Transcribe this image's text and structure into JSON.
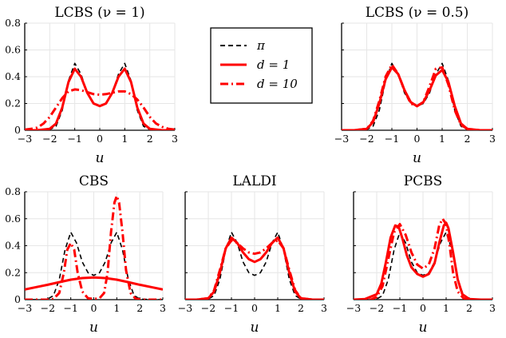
{
  "figure": {
    "background": "#ffffff"
  },
  "chart_data": [
    {
      "id": "lcbs1",
      "type": "line",
      "title": "LCBS (ν = 1)",
      "xlabel": "u",
      "ylabel": "",
      "xlim": [
        -3,
        3
      ],
      "ylim": [
        0,
        0.8
      ],
      "xticks": [
        -3,
        -2,
        -1,
        0,
        1,
        2,
        3
      ],
      "yticks": [
        0,
        0.2,
        0.4,
        0.6,
        0.8
      ],
      "xtick_labels": [
        "−3",
        "−2",
        "−1",
        "0",
        "1",
        "2",
        "3"
      ],
      "ytick_labels": [
        "0",
        "0.2",
        "0.4",
        "0.6",
        "0.8"
      ],
      "show_yticklabels": true,
      "grid": true,
      "series": [
        {
          "name": "π",
          "style": "dashed",
          "color": "#000000",
          "x": [
            -3,
            -2.5,
            -2,
            -1.75,
            -1.5,
            -1.25,
            -1,
            -0.75,
            -0.5,
            -0.25,
            0,
            0.25,
            0.5,
            0.75,
            1,
            1.25,
            1.5,
            1.75,
            2,
            2.5,
            3
          ],
          "y": [
            0,
            0,
            0.005,
            0.03,
            0.15,
            0.37,
            0.5,
            0.42,
            0.28,
            0.2,
            0.18,
            0.2,
            0.28,
            0.42,
            0.5,
            0.37,
            0.15,
            0.03,
            0.005,
            0,
            0
          ]
        },
        {
          "name": "d = 1",
          "style": "solid",
          "color": "#ff0000",
          "x": [
            -3,
            -2.5,
            -2,
            -1.75,
            -1.5,
            -1.25,
            -1,
            -0.75,
            -0.5,
            -0.25,
            0,
            0.25,
            0.5,
            0.75,
            1,
            1.25,
            1.5,
            1.75,
            2,
            2.5,
            3
          ],
          "y": [
            0,
            0,
            0.01,
            0.05,
            0.17,
            0.36,
            0.46,
            0.4,
            0.28,
            0.2,
            0.18,
            0.2,
            0.28,
            0.4,
            0.46,
            0.36,
            0.17,
            0.05,
            0.01,
            0,
            0
          ]
        },
        {
          "name": "d = 10",
          "style": "dashdot",
          "color": "#ff0000",
          "x": [
            -3,
            -2.75,
            -2.5,
            -2.25,
            -2,
            -1.75,
            -1.5,
            -1.25,
            -1,
            -0.75,
            -0.5,
            -0.25,
            0,
            0.25,
            0.5,
            0.75,
            1,
            1.25,
            1.5,
            1.75,
            2,
            2.25,
            2.5,
            2.75,
            3
          ],
          "y": [
            0.005,
            0.01,
            0.02,
            0.05,
            0.1,
            0.17,
            0.24,
            0.29,
            0.305,
            0.3,
            0.285,
            0.27,
            0.265,
            0.27,
            0.28,
            0.29,
            0.29,
            0.27,
            0.23,
            0.17,
            0.1,
            0.05,
            0.025,
            0.01,
            0.005
          ]
        }
      ]
    },
    {
      "id": "lcbs05",
      "type": "line",
      "title": "LCBS (ν = 0.5)",
      "xlabel": "u",
      "ylabel": "",
      "xlim": [
        -3,
        3
      ],
      "ylim": [
        0,
        0.8
      ],
      "xticks": [
        -3,
        -2,
        -1,
        0,
        1,
        2,
        3
      ],
      "yticks": [
        0,
        0.2,
        0.4,
        0.6,
        0.8
      ],
      "xtick_labels": [
        "−3",
        "−2",
        "−1",
        "0",
        "1",
        "2",
        "3"
      ],
      "ytick_labels": [
        "0",
        "0.2",
        "0.4",
        "0.6",
        "0.8"
      ],
      "show_yticklabels": false,
      "grid": true,
      "series": [
        {
          "name": "π",
          "style": "dashed",
          "color": "#000000",
          "x": [
            -3,
            -2.5,
            -2,
            -1.75,
            -1.5,
            -1.25,
            -1,
            -0.75,
            -0.5,
            -0.25,
            0,
            0.25,
            0.5,
            0.75,
            1,
            1.25,
            1.5,
            1.75,
            2,
            2.5,
            3
          ],
          "y": [
            0,
            0,
            0.005,
            0.03,
            0.15,
            0.37,
            0.5,
            0.42,
            0.28,
            0.2,
            0.18,
            0.2,
            0.28,
            0.42,
            0.5,
            0.37,
            0.15,
            0.03,
            0.005,
            0,
            0
          ]
        },
        {
          "name": "d = 1",
          "style": "solid",
          "color": "#ff0000",
          "x": [
            -3,
            -2.5,
            -2,
            -1.75,
            -1.5,
            -1.25,
            -1,
            -0.75,
            -0.5,
            -0.25,
            0,
            0.25,
            0.5,
            0.75,
            1,
            1.25,
            1.5,
            1.75,
            2,
            2.5,
            3
          ],
          "y": [
            0,
            0,
            0.01,
            0.06,
            0.2,
            0.38,
            0.47,
            0.42,
            0.3,
            0.21,
            0.18,
            0.21,
            0.3,
            0.41,
            0.45,
            0.36,
            0.18,
            0.05,
            0.01,
            0,
            0
          ]
        },
        {
          "name": "d = 10",
          "style": "dashdot",
          "color": "#ff0000",
          "x": [
            -3,
            -2.5,
            -2,
            -1.75,
            -1.5,
            -1.25,
            -1,
            -0.75,
            -0.5,
            -0.25,
            0,
            0.25,
            0.5,
            0.75,
            1,
            1.25,
            1.5,
            1.75,
            2,
            2.5,
            3
          ],
          "y": [
            0,
            0,
            0.01,
            0.07,
            0.22,
            0.4,
            0.49,
            0.42,
            0.3,
            0.2,
            0.18,
            0.21,
            0.33,
            0.46,
            0.47,
            0.34,
            0.15,
            0.04,
            0.01,
            0,
            0
          ]
        }
      ]
    },
    {
      "id": "cbs",
      "type": "line",
      "title": "CBS",
      "xlabel": "u",
      "ylabel": "",
      "xlim": [
        -3,
        3
      ],
      "ylim": [
        0,
        0.8
      ],
      "xticks": [
        -3,
        -2,
        -1,
        0,
        1,
        2,
        3
      ],
      "yticks": [
        0,
        0.2,
        0.4,
        0.6,
        0.8
      ],
      "xtick_labels": [
        "−3",
        "−2",
        "−1",
        "0",
        "1",
        "2",
        "3"
      ],
      "ytick_labels": [
        "0",
        "0.2",
        "0.4",
        "0.6",
        "0.8"
      ],
      "show_yticklabels": true,
      "grid": true,
      "series": [
        {
          "name": "π",
          "style": "dashed",
          "color": "#000000",
          "x": [
            -3,
            -2.5,
            -2,
            -1.75,
            -1.5,
            -1.25,
            -1,
            -0.75,
            -0.5,
            -0.25,
            0,
            0.25,
            0.5,
            0.75,
            1,
            1.25,
            1.5,
            1.75,
            2,
            2.5,
            3
          ],
          "y": [
            0,
            0,
            0.005,
            0.03,
            0.15,
            0.37,
            0.5,
            0.42,
            0.28,
            0.2,
            0.18,
            0.2,
            0.28,
            0.42,
            0.5,
            0.37,
            0.15,
            0.03,
            0.005,
            0,
            0
          ]
        },
        {
          "name": "d = 1",
          "style": "solid",
          "color": "#ff0000",
          "x": [
            -3,
            -2.5,
            -2,
            -1.5,
            -1,
            -0.5,
            0,
            0.5,
            1,
            1.5,
            2,
            2.5,
            3
          ],
          "y": [
            0.075,
            0.093,
            0.11,
            0.13,
            0.148,
            0.16,
            0.165,
            0.16,
            0.148,
            0.13,
            0.11,
            0.093,
            0.075
          ]
        },
        {
          "name": "d = 10",
          "style": "dashdot",
          "color": "#ff0000",
          "x": [
            -3,
            -2,
            -1.75,
            -1.5,
            -1.3,
            -1.15,
            -1,
            -0.85,
            -0.7,
            -0.5,
            -0.25,
            0,
            0.25,
            0.45,
            0.6,
            0.75,
            0.9,
            1,
            1.1,
            1.25,
            1.4,
            1.6,
            1.8,
            2,
            3
          ],
          "y": [
            0,
            0,
            0.005,
            0.05,
            0.2,
            0.37,
            0.42,
            0.37,
            0.2,
            0.06,
            0.01,
            0.005,
            0.01,
            0.05,
            0.2,
            0.5,
            0.72,
            0.77,
            0.72,
            0.5,
            0.22,
            0.05,
            0.01,
            0,
            0
          ]
        }
      ]
    },
    {
      "id": "laldi",
      "type": "line",
      "title": "LALDI",
      "xlabel": "u",
      "ylabel": "",
      "xlim": [
        -3,
        3
      ],
      "ylim": [
        0,
        0.8
      ],
      "xticks": [
        -3,
        -2,
        -1,
        0,
        1,
        2,
        3
      ],
      "yticks": [
        0,
        0.2,
        0.4,
        0.6,
        0.8
      ],
      "xtick_labels": [
        "−3",
        "−2",
        "−1",
        "0",
        "1",
        "2",
        "3"
      ],
      "ytick_labels": [
        "0",
        "0.2",
        "0.4",
        "0.6",
        "0.8"
      ],
      "show_yticklabels": false,
      "grid": true,
      "series": [
        {
          "name": "π",
          "style": "dashed",
          "color": "#000000",
          "x": [
            -3,
            -2.5,
            -2,
            -1.75,
            -1.5,
            -1.25,
            -1,
            -0.75,
            -0.5,
            -0.25,
            0,
            0.25,
            0.5,
            0.75,
            1,
            1.25,
            1.5,
            1.75,
            2,
            2.5,
            3
          ],
          "y": [
            0,
            0,
            0.005,
            0.03,
            0.15,
            0.37,
            0.5,
            0.42,
            0.28,
            0.2,
            0.18,
            0.2,
            0.28,
            0.42,
            0.5,
            0.37,
            0.15,
            0.03,
            0.005,
            0,
            0
          ]
        },
        {
          "name": "d = 1",
          "style": "solid",
          "color": "#ff0000",
          "x": [
            -3,
            -2.5,
            -2,
            -1.75,
            -1.5,
            -1.25,
            -1,
            -0.75,
            -0.5,
            -0.25,
            0,
            0.25,
            0.5,
            0.75,
            1,
            1.25,
            1.5,
            1.75,
            2,
            2.5,
            3
          ],
          "y": [
            0,
            0,
            0.01,
            0.06,
            0.2,
            0.38,
            0.46,
            0.42,
            0.35,
            0.3,
            0.28,
            0.3,
            0.35,
            0.42,
            0.46,
            0.38,
            0.2,
            0.06,
            0.01,
            0,
            0
          ]
        },
        {
          "name": "d = 10",
          "style": "dashdot",
          "color": "#ff0000",
          "x": [
            -3,
            -2.5,
            -2,
            -1.75,
            -1.5,
            -1.25,
            -1,
            -0.75,
            -0.5,
            -0.25,
            0,
            0.25,
            0.5,
            0.75,
            1,
            1.25,
            1.5,
            1.75,
            2,
            2.5,
            3
          ],
          "y": [
            0,
            0,
            0.01,
            0.07,
            0.22,
            0.38,
            0.44,
            0.42,
            0.38,
            0.35,
            0.34,
            0.35,
            0.38,
            0.42,
            0.44,
            0.38,
            0.22,
            0.07,
            0.01,
            0,
            0
          ]
        }
      ]
    },
    {
      "id": "pcbs",
      "type": "line",
      "title": "PCBS",
      "xlabel": "u",
      "ylabel": "",
      "xlim": [
        -3,
        3
      ],
      "ylim": [
        0,
        0.8
      ],
      "xticks": [
        -3,
        -2,
        -1,
        0,
        1,
        2,
        3
      ],
      "yticks": [
        0,
        0.2,
        0.4,
        0.6,
        0.8
      ],
      "xtick_labels": [
        "−3",
        "−2",
        "−1",
        "0",
        "1",
        "2",
        "3"
      ],
      "ytick_labels": [
        "0",
        "0.2",
        "0.4",
        "0.6",
        "0.8"
      ],
      "show_yticklabels": false,
      "grid": true,
      "series": [
        {
          "name": "π",
          "style": "dashed",
          "color": "#000000",
          "x": [
            -3,
            -2.5,
            -2,
            -1.75,
            -1.5,
            -1.25,
            -1,
            -0.75,
            -0.5,
            -0.25,
            0,
            0.25,
            0.5,
            0.75,
            1,
            1.25,
            1.5,
            1.75,
            2,
            2.5,
            3
          ],
          "y": [
            0,
            0,
            0.005,
            0.03,
            0.15,
            0.37,
            0.5,
            0.42,
            0.28,
            0.2,
            0.18,
            0.2,
            0.28,
            0.42,
            0.5,
            0.37,
            0.15,
            0.03,
            0.005,
            0,
            0
          ]
        },
        {
          "name": "d = 1",
          "style": "solid",
          "color": "#ff0000",
          "x": [
            -3,
            -2.5,
            -2,
            -1.8,
            -1.6,
            -1.4,
            -1.2,
            -1.05,
            -0.9,
            -0.7,
            -0.5,
            -0.25,
            0,
            0.25,
            0.5,
            0.7,
            0.9,
            1,
            1.1,
            1.3,
            1.5,
            1.7,
            2,
            2.5,
            3
          ],
          "y": [
            0,
            0.005,
            0.04,
            0.12,
            0.28,
            0.46,
            0.55,
            0.54,
            0.46,
            0.33,
            0.24,
            0.19,
            0.17,
            0.19,
            0.27,
            0.42,
            0.55,
            0.57,
            0.53,
            0.35,
            0.15,
            0.04,
            0.005,
            0,
            0
          ]
        },
        {
          "name": "d = 10",
          "style": "dashdot",
          "color": "#ff0000",
          "x": [
            -3,
            -2.25,
            -2,
            -1.75,
            -1.5,
            -1.25,
            -1,
            -0.75,
            -0.5,
            -0.25,
            0,
            0.25,
            0.5,
            0.7,
            0.85,
            1,
            1.15,
            1.3,
            1.5,
            1.75,
            2,
            3
          ],
          "y": [
            0,
            0,
            0.02,
            0.1,
            0.3,
            0.5,
            0.56,
            0.48,
            0.35,
            0.26,
            0.23,
            0.26,
            0.38,
            0.55,
            0.6,
            0.56,
            0.4,
            0.2,
            0.06,
            0.01,
            0,
            0
          ]
        }
      ]
    }
  ],
  "legend": {
    "entries": [
      {
        "label": "π",
        "style": "dashed",
        "color": "#000000"
      },
      {
        "label": "d = 1",
        "style": "solid",
        "color": "#ff0000"
      },
      {
        "label": "d = 10",
        "style": "dashdot",
        "color": "#ff0000"
      }
    ]
  }
}
